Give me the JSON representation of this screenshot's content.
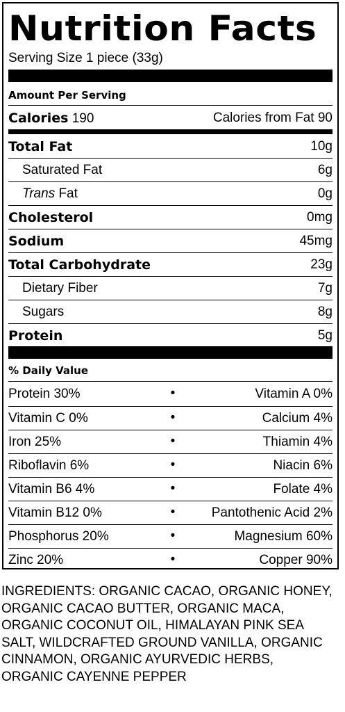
{
  "title": "Nutrition Facts",
  "serving_size": "Serving Size 1 piece (33g)",
  "amount_per_serving": "Amount Per Serving",
  "calories": {
    "label": "Calories",
    "value": "190",
    "from_fat": "Calories from Fat 90"
  },
  "nutrients": [
    {
      "label": "Total Fat",
      "value": "10g"
    },
    {
      "label": "Saturated Fat",
      "value": "6g"
    },
    {
      "label_italic": "Trans",
      "label": " Fat",
      "value": "0g"
    },
    {
      "label": "Cholesterol",
      "value": "0mg"
    },
    {
      "label": "Sodium",
      "value": "45mg"
    },
    {
      "label": "Total Carbohydrate",
      "value": "23g"
    },
    {
      "label": "Dietary Fiber",
      "value": "7g"
    },
    {
      "label": "Sugars",
      "value": "8g"
    },
    {
      "label": "Protein",
      "value": "5g"
    }
  ],
  "daily_value_heading": "% Daily Value",
  "bullet": "•",
  "vitamins": [
    {
      "left": "Protein 30%",
      "right": "Vitamin A 0%"
    },
    {
      "left": "Vitamin C 0%",
      "right": "Calcium 4%"
    },
    {
      "left": "Iron 25%",
      "right": "Thiamin 4%"
    },
    {
      "left": "Riboflavin 6%",
      "right": "Niacin 6%"
    },
    {
      "left": "Vitamin B6 4%",
      "right": "Folate 4%"
    },
    {
      "left": "Vitamin B12 0%",
      "right": "Pantothenic Acid 2%"
    },
    {
      "left": "Phosphorus 20%",
      "right": "Magnesium 60%"
    },
    {
      "left": "Zinc 20%",
      "right": "Copper 90%"
    }
  ],
  "ingredients": "INGREDIENTS: ORGANIC CACAO, ORGANIC HONEY, ORGANIC CACAO BUTTER, ORGANIC MACA, ORGANIC COCONUT OIL, HIMALAYAN PINK SEA SALT, WILDCRAFTED GROUND VANILLA, ORGANIC CINNAMON, ORGANIC AYURVEDIC HERBS, ORGANIC CAYENNE PEPPER"
}
